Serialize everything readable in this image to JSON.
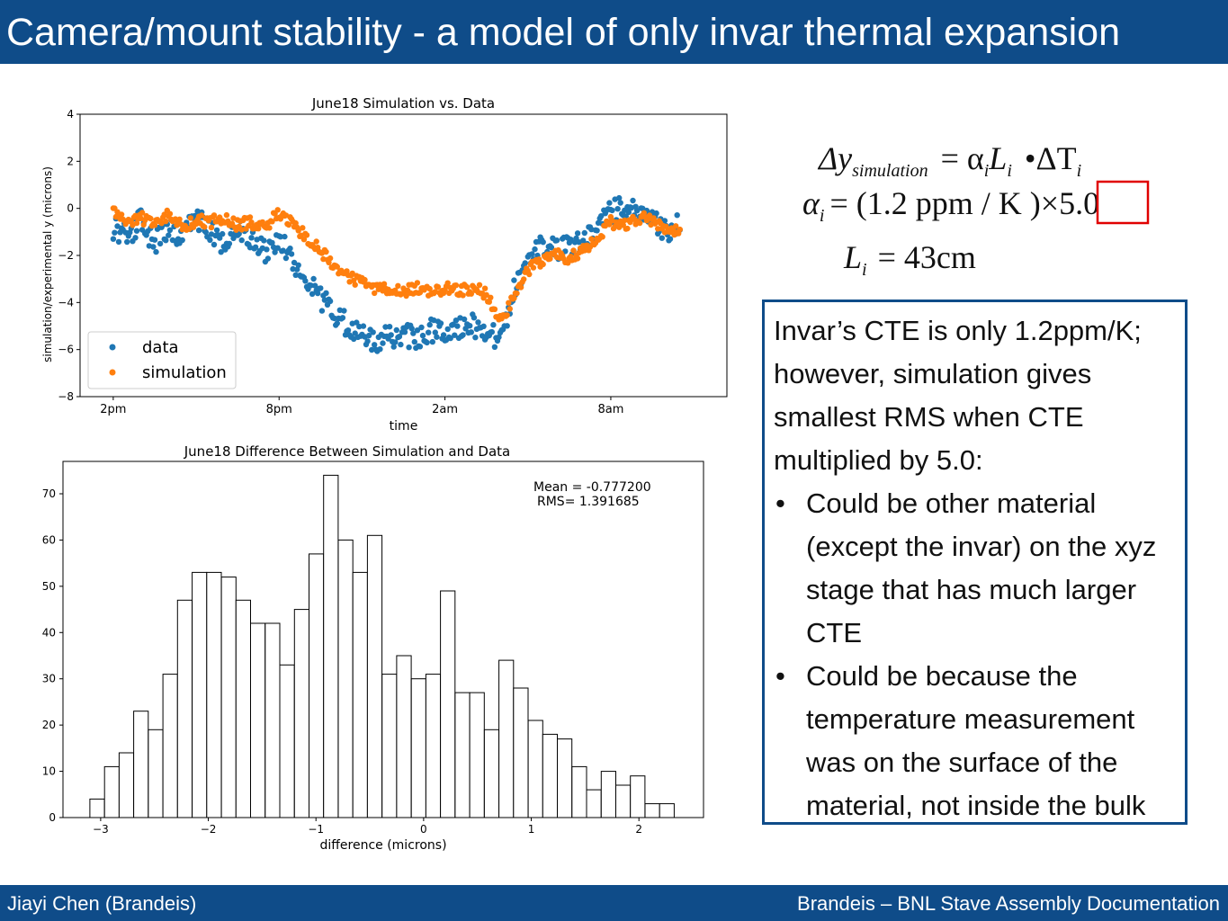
{
  "slide": {
    "title": "Camera/mount stability - a model of only invar thermal expansion",
    "footer_left": "Jiayi Chen (Brandeis)",
    "footer_right": "Brandeis – BNL Stave Assembly Documentation",
    "theme_color": "#0f4c89"
  },
  "formula": {
    "line1_lhs": "Δy",
    "line1_sub": "simulation",
    "line1_rhs": "= α",
    "line1_rhs_sub": "i",
    "line1_L": "L",
    "line1_L_sub": "i",
    "line1_dot": "•ΔT",
    "line1_T_sub": "i",
    "line2_alpha": "α",
    "line2_alpha_sub": "i",
    "line2_mid": "= (1.2 ppm / K   )×",
    "line2_boxed": "5.0",
    "line3_L": "L",
    "line3_L_sub": "i",
    "line3_rhs": "= 43cm",
    "box_color": "#e00000"
  },
  "textbox": {
    "intro": "Invar’s CTE is only 1.2ppm/K; however, simulation gives smallest RMS when CTE multiplied by 5.0:",
    "bullet_symbol": "•",
    "bullets": [
      "Could be other material (except the invar) on the xyz stage that has much larger CTE",
      "Could be because the temperature measurement was on the surface of the material, not inside the bulk"
    ]
  },
  "chart_data": [
    {
      "type": "scatter",
      "title": "June18 Simulation vs. Data",
      "xlabel": "time",
      "ylabel": "simulation/experimental y (microns)",
      "x_ticks": [
        "2pm",
        "8pm",
        "2am",
        "8am"
      ],
      "x_tick_hours": [
        0,
        6,
        12,
        18
      ],
      "xlim_hours": [
        -1.2,
        22.2
      ],
      "ylim": [
        -8,
        4
      ],
      "y_ticks": [
        -8,
        -6,
        -4,
        -2,
        0,
        2,
        4
      ],
      "legend_position": "lower-left",
      "grid": false,
      "series": [
        {
          "name": "data",
          "color": "#1f77b4",
          "x_hours": [
            0.0,
            0.5,
            1.0,
            1.5,
            2.0,
            2.5,
            3.0,
            3.5,
            4.0,
            4.5,
            5.0,
            5.5,
            6.0,
            6.5,
            7.0,
            7.5,
            8.0,
            8.5,
            9.0,
            9.5,
            10.0,
            10.5,
            11.0,
            11.5,
            12.0,
            12.5,
            13.0,
            13.5,
            14.0,
            14.5,
            15.0,
            15.5,
            16.0,
            16.5,
            17.0,
            17.5,
            18.0,
            18.5,
            19.0,
            19.5,
            20.0,
            20.5
          ],
          "values": [
            -0.8,
            -1.2,
            -0.5,
            -1.5,
            -0.7,
            -1.3,
            -0.4,
            -1.0,
            -1.5,
            -0.9,
            -1.2,
            -1.8,
            -1.3,
            -2.3,
            -3.0,
            -3.8,
            -4.5,
            -5.0,
            -5.4,
            -5.6,
            -5.5,
            -5.4,
            -5.5,
            -5.2,
            -5.3,
            -5.1,
            -5.0,
            -5.2,
            -5.6,
            -3.5,
            -2.0,
            -1.5,
            -1.8,
            -1.6,
            -1.3,
            -0.8,
            -0.2,
            0.1,
            -0.3,
            -0.5,
            -1.0,
            -0.6
          ]
        },
        {
          "name": "simulation",
          "color": "#ff7f0e",
          "x_hours": [
            0.0,
            0.5,
            1.0,
            1.5,
            2.0,
            2.5,
            3.0,
            3.5,
            4.0,
            4.5,
            5.0,
            5.5,
            6.0,
            6.5,
            7.0,
            7.5,
            8.0,
            8.5,
            9.0,
            9.5,
            10.0,
            10.5,
            11.0,
            11.5,
            12.0,
            12.5,
            13.0,
            13.5,
            14.0,
            14.5,
            15.0,
            15.5,
            16.0,
            16.5,
            17.0,
            17.5,
            18.0,
            18.5,
            19.0,
            19.5,
            20.0,
            20.5
          ],
          "values": [
            0.0,
            -0.6,
            -0.4,
            -0.7,
            -0.3,
            -0.8,
            -0.5,
            -0.6,
            -0.4,
            -0.7,
            -0.6,
            -0.8,
            -0.2,
            -0.7,
            -1.2,
            -1.8,
            -2.5,
            -2.9,
            -3.2,
            -3.4,
            -3.5,
            -3.5,
            -3.4,
            -3.5,
            -3.4,
            -3.5,
            -3.4,
            -3.6,
            -4.8,
            -3.8,
            -2.6,
            -2.3,
            -2.0,
            -2.1,
            -1.8,
            -1.2,
            -0.6,
            -0.7,
            -0.4,
            -0.5,
            -1.0,
            -0.8
          ]
        }
      ]
    },
    {
      "type": "bar",
      "title": "June18 Difference Between Simulation and Data",
      "xlabel": "difference (microns)",
      "ylabel": "",
      "annotation_mean": "Mean = -0.777200",
      "annotation_rms": "RMS= 1.391685",
      "x_ticks": [
        -3,
        -2,
        -1,
        0,
        1,
        2
      ],
      "y_ticks": [
        0,
        10,
        20,
        30,
        40,
        50,
        60,
        70
      ],
      "xlim": [
        -3.35,
        2.6
      ],
      "ylim": [
        0,
        77
      ],
      "bin_start": -3.1,
      "bin_width": 0.1357,
      "values": [
        4,
        11,
        14,
        23,
        19,
        31,
        47,
        53,
        53,
        52,
        47,
        42,
        42,
        33,
        45,
        57,
        74,
        60,
        53,
        61,
        31,
        35,
        30,
        31,
        49,
        27,
        27,
        19,
        34,
        28,
        21,
        18,
        17,
        11,
        6,
        10,
        7,
        9,
        3,
        3
      ]
    }
  ]
}
